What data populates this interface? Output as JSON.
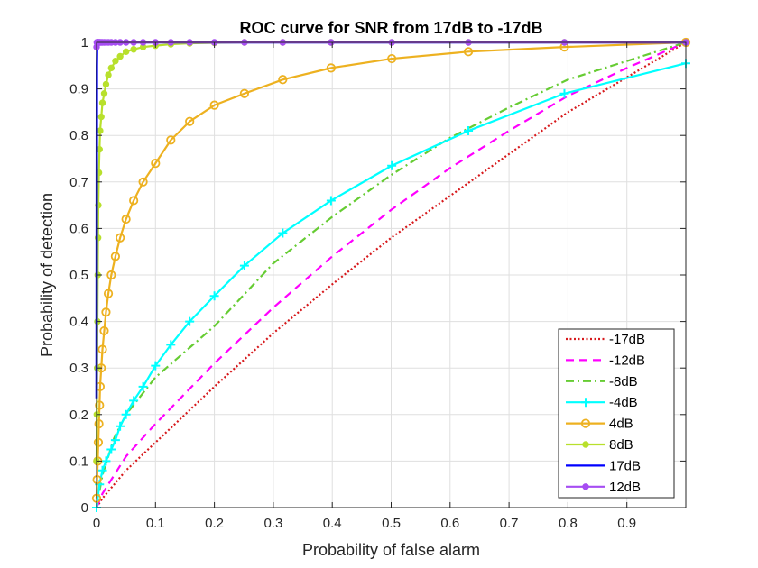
{
  "chart_data": {
    "type": "line",
    "title": "ROC curve for SNR from 17dB to -17dB",
    "xlabel": "Probability of false alarm",
    "ylabel": "Probability of detection",
    "xlim": [
      0,
      1
    ],
    "ylim": [
      0,
      1
    ],
    "grid": true,
    "legend_position": "bottom-right",
    "x_ticks": [
      0,
      0.1,
      0.2,
      0.3,
      0.4,
      0.5,
      0.6,
      0.7,
      0.8,
      0.9
    ],
    "x_tick_labels": [
      "0",
      "0.1",
      "0.2",
      "0.3",
      "0.4",
      "0.5",
      "0.6",
      "0.7",
      "0.8",
      "0.9"
    ],
    "y_ticks": [
      0,
      0.1,
      0.2,
      0.3,
      0.4,
      0.5,
      0.6,
      0.7,
      0.8,
      0.9,
      1
    ],
    "y_tick_labels": [
      "0",
      "0.1",
      "0.2",
      "0.3",
      "0.4",
      "0.5",
      "0.6",
      "0.7",
      "0.8",
      "0.9",
      "1"
    ],
    "series": [
      {
        "name": "-17dB",
        "color": "#d7191c",
        "line": "dotted",
        "marker": "none",
        "x": [
          0,
          0.01,
          0.05,
          0.1,
          0.2,
          0.3,
          0.4,
          0.5,
          0.6,
          0.7,
          0.8,
          0.9,
          1
        ],
        "y": [
          0,
          0.02,
          0.08,
          0.14,
          0.26,
          0.375,
          0.48,
          0.58,
          0.67,
          0.76,
          0.85,
          0.925,
          1
        ]
      },
      {
        "name": "-12dB",
        "color": "#ff00ff",
        "line": "dashed",
        "marker": "none",
        "x": [
          0,
          0.01,
          0.05,
          0.1,
          0.2,
          0.3,
          0.4,
          0.5,
          0.6,
          0.7,
          0.8,
          0.9,
          1
        ],
        "y": [
          0,
          0.03,
          0.11,
          0.18,
          0.31,
          0.43,
          0.54,
          0.64,
          0.73,
          0.81,
          0.885,
          0.945,
          1
        ]
      },
      {
        "name": "-8dB",
        "color": "#66cc33",
        "line": "dashdot",
        "marker": "none",
        "x": [
          0,
          0.01,
          0.03,
          0.05,
          0.1,
          0.2,
          0.3,
          0.4,
          0.5,
          0.6,
          0.7,
          0.8,
          0.9,
          1
        ],
        "y": [
          0,
          0.07,
          0.15,
          0.2,
          0.28,
          0.39,
          0.525,
          0.625,
          0.715,
          0.795,
          0.86,
          0.92,
          0.96,
          1
        ]
      },
      {
        "name": "-4dB",
        "color": "#00ffff",
        "line": "solid",
        "marker": "plus",
        "x": [
          0,
          0.005,
          0.01,
          0.016,
          0.025,
          0.032,
          0.04,
          0.05,
          0.063,
          0.079,
          0.1,
          0.126,
          0.158,
          0.2,
          0.251,
          0.316,
          0.398,
          0.501,
          0.631,
          0.794,
          1
        ],
        "y": [
          0,
          0.05,
          0.08,
          0.1,
          0.125,
          0.145,
          0.175,
          0.2,
          0.23,
          0.26,
          0.305,
          0.35,
          0.4,
          0.455,
          0.52,
          0.59,
          0.66,
          0.735,
          0.81,
          0.89,
          0.955
        ]
      },
      {
        "name": "4dB",
        "color": "#edb120",
        "line": "solid",
        "marker": "circle",
        "x": [
          0,
          0.001,
          0.002,
          0.003,
          0.004,
          0.005,
          0.006,
          0.008,
          0.01,
          0.013,
          0.016,
          0.02,
          0.025,
          0.032,
          0.04,
          0.05,
          0.063,
          0.079,
          0.1,
          0.126,
          0.158,
          0.2,
          0.251,
          0.316,
          0.398,
          0.501,
          0.631,
          0.794,
          1
        ],
        "y": [
          0.02,
          0.06,
          0.1,
          0.14,
          0.18,
          0.22,
          0.26,
          0.3,
          0.34,
          0.38,
          0.42,
          0.46,
          0.5,
          0.54,
          0.58,
          0.62,
          0.66,
          0.7,
          0.74,
          0.79,
          0.83,
          0.865,
          0.89,
          0.92,
          0.945,
          0.965,
          0.98,
          0.99,
          1
        ]
      },
      {
        "name": "8dB",
        "color": "#b8e02c",
        "line": "solid",
        "marker": "dot",
        "x": [
          0,
          0.0005,
          0.001,
          0.0015,
          0.002,
          0.0025,
          0.003,
          0.004,
          0.005,
          0.006,
          0.008,
          0.01,
          0.013,
          0.016,
          0.02,
          0.025,
          0.032,
          0.04,
          0.05,
          0.063,
          0.079,
          0.1,
          0.126,
          0.158,
          0.2,
          0.251,
          0.316,
          0.398,
          0.501,
          0.631,
          0.794,
          1
        ],
        "y": [
          0.1,
          0.2,
          0.3,
          0.4,
          0.5,
          0.58,
          0.65,
          0.72,
          0.77,
          0.81,
          0.84,
          0.87,
          0.89,
          0.91,
          0.93,
          0.945,
          0.96,
          0.97,
          0.98,
          0.985,
          0.99,
          0.993,
          0.996,
          0.998,
          0.999,
          1,
          1,
          1,
          1,
          1,
          1,
          1
        ]
      },
      {
        "name": "17dB",
        "color": "#0000ff",
        "line": "solid",
        "marker": "none",
        "x": [
          0,
          0.0005,
          0.001,
          0.002,
          0.005,
          1
        ],
        "y": [
          0.235,
          0.95,
          1,
          1,
          1,
          1
        ]
      },
      {
        "name": "12dB",
        "color": "#a64df2",
        "line": "solid",
        "marker": "dot",
        "x": [
          0,
          0.0005,
          0.001,
          0.0015,
          0.002,
          0.003,
          0.004,
          0.005,
          0.006,
          0.008,
          0.01,
          0.013,
          0.016,
          0.02,
          0.025,
          0.032,
          0.04,
          0.05,
          0.063,
          0.079,
          0.1,
          0.126,
          0.158,
          0.2,
          0.251,
          0.316,
          0.398,
          0.501,
          0.631,
          0.794,
          1
        ],
        "y": [
          0.99,
          1,
          1,
          1,
          1,
          1,
          1,
          1,
          1,
          1,
          1,
          1,
          1,
          1,
          1,
          1,
          1,
          1,
          1,
          1,
          1,
          1,
          1,
          1,
          1,
          1,
          1,
          1,
          1,
          1,
          1
        ]
      }
    ]
  }
}
